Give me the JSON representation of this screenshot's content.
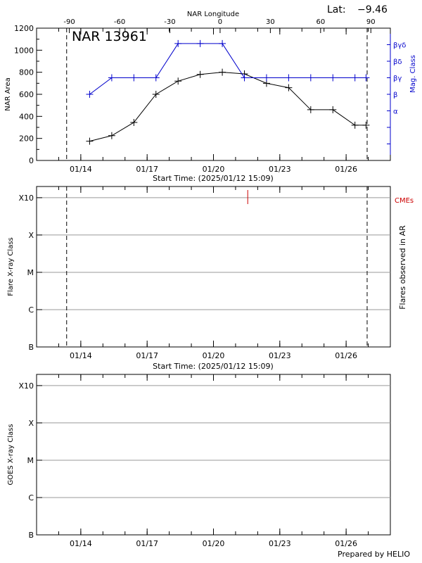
{
  "chart_data": [
    {
      "type": "line",
      "title": "NAR 13961",
      "lat_label": "Lat:",
      "lat_value": "−9.46",
      "top_axis_label": "NAR Longitude",
      "top_ticks": [
        "-90",
        "-60",
        "-30",
        "0",
        "30",
        "60",
        "90"
      ],
      "top_tick_values": [
        -90,
        -60,
        -30,
        0,
        30,
        60,
        90
      ],
      "xlabel": "Start Time: (2025/01/12 15:09)",
      "x_tick_labels": [
        "01/14",
        "01/17",
        "01/20",
        "01/23",
        "01/26"
      ],
      "x_tick_days": [
        2,
        5,
        8,
        11,
        14
      ],
      "x_range_days": [
        0,
        16
      ],
      "ylabel": "NAR Area",
      "ylim": [
        0,
        1200
      ],
      "y_ticks": [
        0,
        200,
        400,
        600,
        800,
        1000,
        1200
      ],
      "right_ylabel": "Mag. Class",
      "mag_classes": [
        "α",
        "β",
        "βγ",
        "βδ",
        "βγδ"
      ],
      "dashed_lines_days": [
        1.36,
        14.95
      ],
      "series": [
        {
          "color": "#000000",
          "x_days": [
            2.4,
            3.4,
            4.4,
            5.4,
            6.4,
            7.4,
            8.4,
            9.4,
            10.4,
            11.4,
            12.4,
            13.4,
            14.4,
            14.9
          ],
          "values": [
            175,
            225,
            345,
            600,
            720,
            780,
            800,
            785,
            700,
            660,
            460,
            460,
            320,
            320
          ]
        },
        {
          "color": "#0000cc",
          "x_days": [
            2.4,
            3.4,
            4.4,
            5.4,
            6.4,
            7.4,
            8.4,
            9.4,
            10.4,
            11.4,
            12.4,
            13.4,
            14.4,
            14.9
          ],
          "values": [
            600,
            750,
            750,
            750,
            1060,
            1060,
            1060,
            750,
            750,
            750,
            750,
            750,
            750,
            750
          ]
        }
      ]
    },
    {
      "type": "scatter",
      "xlabel": "Start Time: (2025/01/12 15:09)",
      "x_tick_labels": [
        "01/14",
        "01/17",
        "01/20",
        "01/23",
        "01/26"
      ],
      "ylabel": "Flare X-ray Class",
      "right_ylabel": "Flares observed in AR",
      "y_classes": [
        "B",
        "C",
        "M",
        "X",
        "X10"
      ],
      "cme_label": "CMEs",
      "cme_color": "#cc0000",
      "cme_times_days": [
        9.55
      ],
      "dashed_lines_days": [
        1.36,
        14.95
      ]
    },
    {
      "type": "scatter",
      "ylabel": "GOES X-ray Class",
      "x_tick_labels": [
        "01/14",
        "01/17",
        "01/20",
        "01/23",
        "01/26"
      ],
      "y_classes": [
        "B",
        "C",
        "M",
        "X",
        "X10"
      ]
    }
  ],
  "footer": "Prepared by HELIO"
}
